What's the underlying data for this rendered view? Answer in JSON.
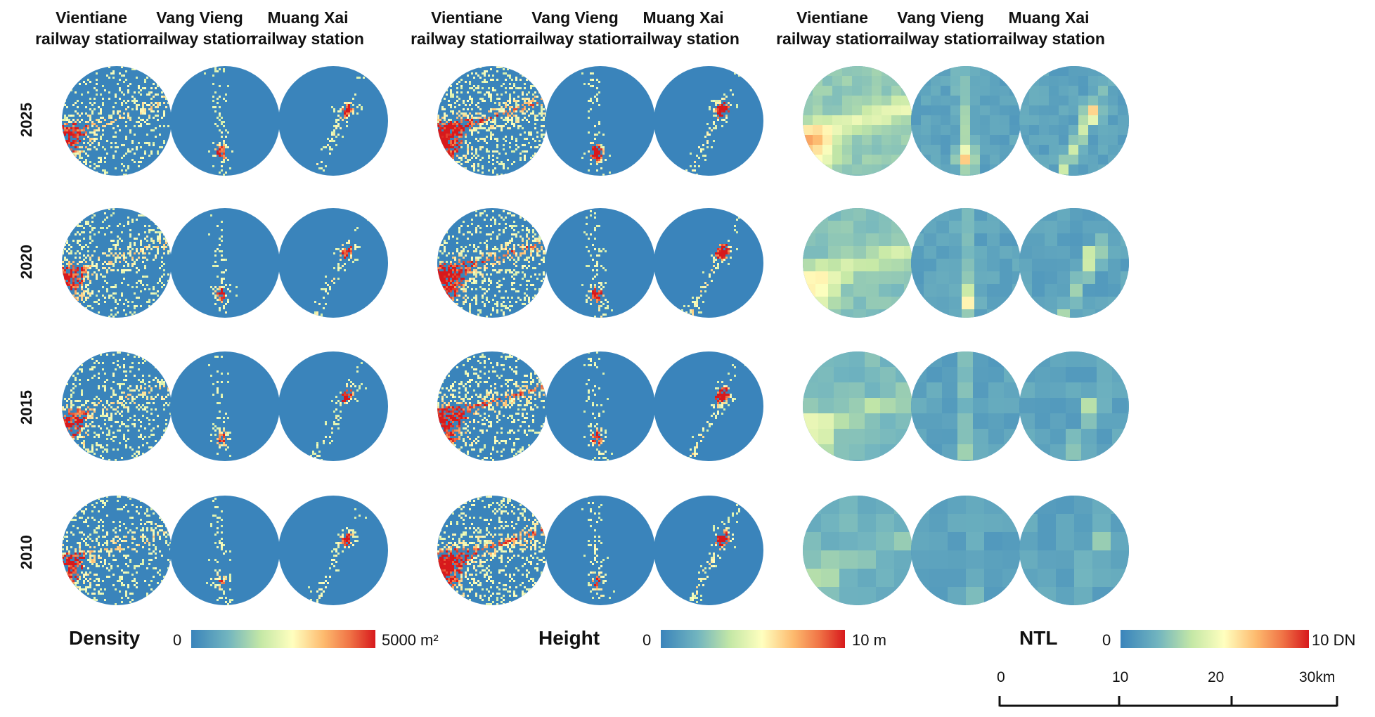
{
  "panel_headers": {
    "vientiane": [
      "Vientiane",
      "railway station"
    ],
    "vang_vieng": [
      "Vang Vieng",
      "railway station"
    ],
    "muang_xai": [
      "Muang Xai",
      "railway station"
    ]
  },
  "years": [
    "2025",
    "2020",
    "2015",
    "2010"
  ],
  "panels": [
    {
      "key": "density",
      "legend": {
        "title": "Density",
        "min": "0",
        "max": "5000 m²"
      }
    },
    {
      "key": "height",
      "legend": {
        "title": "Height",
        "min": "0",
        "max": "10 m"
      }
    },
    {
      "key": "ntl",
      "legend": {
        "title": "NTL",
        "min": "0",
        "max": "10 DN"
      }
    }
  ],
  "colors": {
    "ramp": [
      "#3a84bb",
      "#72b5bf",
      "#c5e8a6",
      "#ffffbf",
      "#fdba6e",
      "#f07446",
      "#d7191c"
    ],
    "base_blue": "#3a84bb"
  },
  "scale_bar": {
    "labels": [
      "0",
      "10",
      "20",
      "30km"
    ],
    "values_km": [
      0,
      10,
      20,
      30
    ]
  }
}
